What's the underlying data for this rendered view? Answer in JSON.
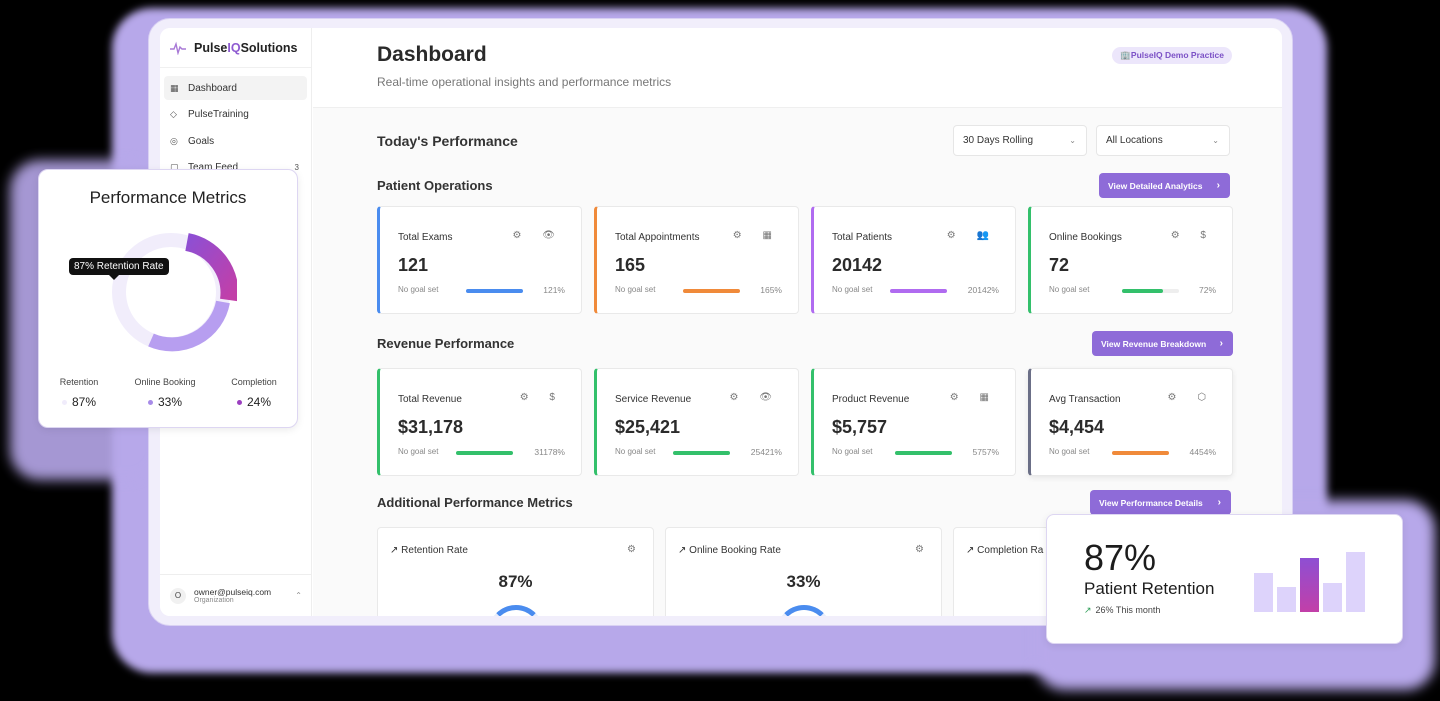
{
  "app": {
    "brand_prefix": "Pulse",
    "brand_accent": "IQ",
    "brand_suffix": "Solutions"
  },
  "sidebar": {
    "items": [
      {
        "label": "Dashboard",
        "icon": "grid-icon",
        "active": true
      },
      {
        "label": "PulseTraining",
        "icon": "graduation-cap-icon"
      },
      {
        "label": "Goals",
        "icon": "target-icon"
      },
      {
        "label": "Team Feed",
        "icon": "message-icon",
        "badge": "3"
      }
    ],
    "user": {
      "avatar": "O",
      "email": "owner@pulseiq.com",
      "role": "Organization"
    }
  },
  "header": {
    "title": "Dashboard",
    "subtitle": "Real-time operational insights and performance metrics",
    "practice_badge": "🏢PulseIQ Demo Practice"
  },
  "today": {
    "title": "Today's Performance",
    "period_select": "30 Days Rolling",
    "location_select": "All Locations"
  },
  "patient_ops": {
    "title": "Patient Operations",
    "button": "View Detailed Analytics",
    "cards": [
      {
        "label": "Total Exams",
        "value": "121",
        "goal": "No goal set",
        "pct": "121%",
        "color": "#4a8cef",
        "icons": "⚙ 👁"
      },
      {
        "label": "Total Appointments",
        "value": "165",
        "goal": "No goal set",
        "pct": "165%",
        "color": "#f08a3a",
        "icons": "⚙ ▦"
      },
      {
        "label": "Total Patients",
        "value": "20142",
        "goal": "No goal set",
        "pct": "20142%",
        "color": "#b06bf0",
        "icons": "⚙ 👥"
      },
      {
        "label": "Online Bookings",
        "value": "72",
        "goal": "No goal set",
        "pct": "72%",
        "progress": 0.72,
        "color": "#33c06b",
        "icons": "⚙ $"
      }
    ]
  },
  "revenue": {
    "title": "Revenue Performance",
    "button": "View Revenue Breakdown",
    "cards": [
      {
        "label": "Total Revenue",
        "value": "$31,178",
        "goal": "No goal set",
        "pct": "31178%",
        "color": "#33c06b",
        "icons": "⚙ $"
      },
      {
        "label": "Service Revenue",
        "value": "$25,421",
        "goal": "No goal set",
        "pct": "25421%",
        "color": "#33c06b",
        "icons": "⚙ 👁"
      },
      {
        "label": "Product Revenue",
        "value": "$5,757",
        "goal": "No goal set",
        "pct": "5757%",
        "color": "#33c06b",
        "icons": "⚙ ▦"
      },
      {
        "label": "Avg Transaction",
        "value": "$4,454",
        "goal": "No goal set",
        "pct": "4454%",
        "color": "#f08a3a",
        "icons": "⚙ ⬡"
      }
    ]
  },
  "additional": {
    "title": "Additional Performance Metrics",
    "button": "View Performance Details",
    "cards": [
      {
        "label": "Retention Rate",
        "value": "87%"
      },
      {
        "label": "Online Booking Rate",
        "value": "33%"
      },
      {
        "label": "Completion Ra",
        "value": ""
      }
    ]
  },
  "perf_overlay": {
    "title": "Performance Metrics",
    "tooltip": "87% Retention Rate",
    "legend": [
      {
        "name": "Retention",
        "value": "87%",
        "color": "#f0ecfb"
      },
      {
        "name": "Online Booking",
        "value": "33%",
        "color": "#a78be8"
      },
      {
        "name": "Completion",
        "value": "24%",
        "color": "#9b3fc0"
      }
    ],
    "colors": {
      "track": "#f1edfb",
      "arc_light": "#b79ef0",
      "arc_dark_start": "#8e4fd3",
      "arc_dark_end": "#c23fa8"
    }
  },
  "retention_overlay": {
    "value": "87%",
    "label": "Patient Retention",
    "change": "26% This month",
    "bar_levels": [
      0.65,
      0.42,
      0.9,
      0.49,
      1.0
    ],
    "highlight_index": 2
  }
}
